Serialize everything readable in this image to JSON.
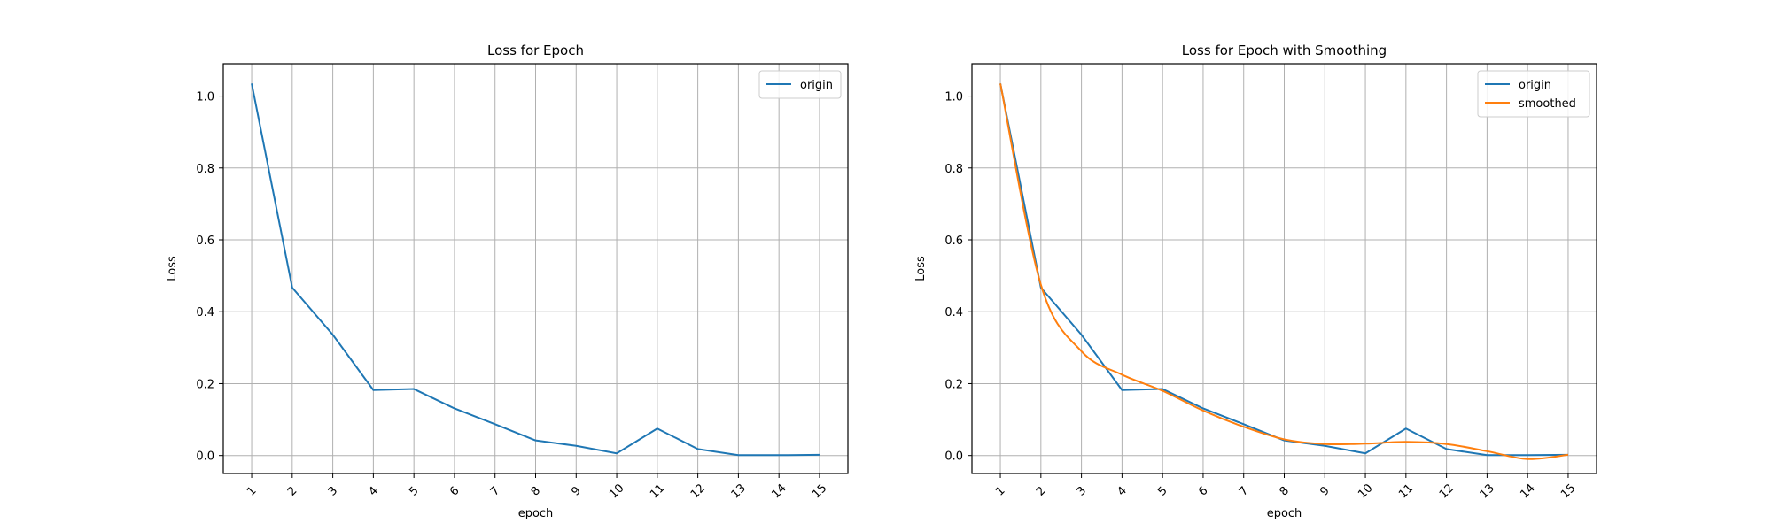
{
  "chart_data": [
    {
      "type": "line",
      "title": "Loss for Epoch",
      "xlabel": "epoch",
      "ylabel": "Loss",
      "categories": [
        "1",
        "2",
        "3",
        "4",
        "5",
        "6",
        "7",
        "8",
        "9",
        "10",
        "11",
        "12",
        "13",
        "14",
        "15"
      ],
      "x": [
        1,
        2,
        3,
        4,
        5,
        6,
        7,
        8,
        9,
        10,
        11,
        12,
        13,
        14,
        15
      ],
      "xlim": [
        0.3,
        15.7
      ],
      "ylim": [
        -0.05,
        1.09
      ],
      "yticks": [
        "0.0",
        "0.2",
        "0.4",
        "0.6",
        "0.8",
        "1.0"
      ],
      "ytick_values": [
        0.0,
        0.2,
        0.4,
        0.6,
        0.8,
        1.0
      ],
      "grid": true,
      "legend": "top-right",
      "series": [
        {
          "name": "origin",
          "color": "#1f77b4",
          "smooth": false,
          "values": [
            1.035,
            0.467,
            0.336,
            0.182,
            0.185,
            0.131,
            0.087,
            0.042,
            0.027,
            0.006,
            0.075,
            0.018,
            0.001,
            0.001,
            0.002
          ]
        }
      ]
    },
    {
      "type": "line",
      "title": "Loss for Epoch with Smoothing",
      "xlabel": "epoch",
      "ylabel": "Loss",
      "categories": [
        "1",
        "2",
        "3",
        "4",
        "5",
        "6",
        "7",
        "8",
        "9",
        "10",
        "11",
        "12",
        "13",
        "14",
        "15"
      ],
      "x": [
        1,
        2,
        3,
        4,
        5,
        6,
        7,
        8,
        9,
        10,
        11,
        12,
        13,
        14,
        15
      ],
      "xlim": [
        0.3,
        15.7
      ],
      "ylim": [
        -0.05,
        1.09
      ],
      "yticks": [
        "0.0",
        "0.2",
        "0.4",
        "0.6",
        "0.8",
        "1.0"
      ],
      "ytick_values": [
        0.0,
        0.2,
        0.4,
        0.6,
        0.8,
        1.0
      ],
      "grid": true,
      "legend": "top-right",
      "series": [
        {
          "name": "origin",
          "color": "#1f77b4",
          "smooth": false,
          "values": [
            1.035,
            0.467,
            0.336,
            0.182,
            0.185,
            0.131,
            0.087,
            0.042,
            0.027,
            0.006,
            0.075,
            0.018,
            0.001,
            0.001,
            0.002
          ]
        },
        {
          "name": "smoothed",
          "color": "#ff7f0e",
          "smooth": true,
          "values": [
            1.035,
            0.475,
            0.29,
            0.225,
            0.18,
            0.125,
            0.08,
            0.045,
            0.032,
            0.033,
            0.038,
            0.032,
            0.012,
            -0.01,
            0.002
          ]
        }
      ]
    }
  ]
}
